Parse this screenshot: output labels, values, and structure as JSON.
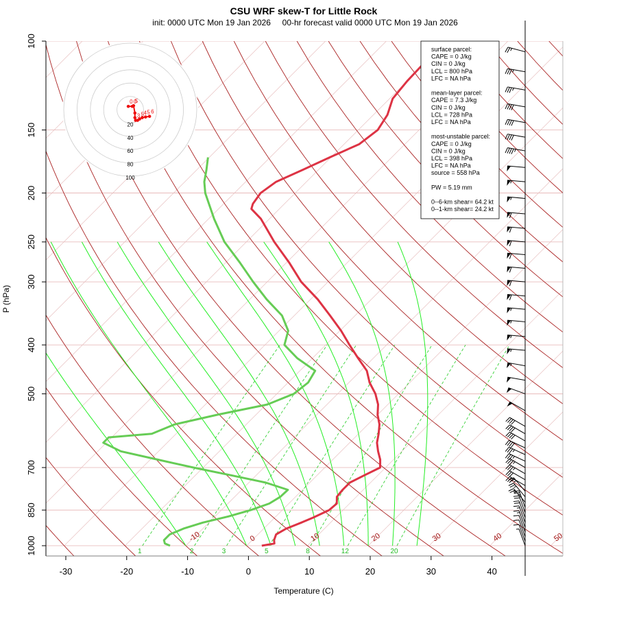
{
  "chart_data": {
    "type": "line",
    "title": "CSU WRF skew-T for Little Rock",
    "subtitle": "init: 0000 UTC Mon 19 Jan 2026     00-hr forecast valid 0000 UTC Mon 19 Jan 2026",
    "xlabel": "Temperature (C)",
    "ylabel": "P (hPa)",
    "x_ticks": [
      "-30",
      "-20",
      "-10",
      "0",
      "10",
      "20",
      "30",
      "40"
    ],
    "x_tick_values": [
      -30,
      -20,
      -10,
      0,
      10,
      20,
      30,
      40
    ],
    "y_ticks": [
      "100",
      "150",
      "200",
      "250",
      "300",
      "400",
      "500",
      "700",
      "850",
      "1000"
    ],
    "y_tick_values": [
      100,
      150,
      200,
      250,
      300,
      400,
      500,
      700,
      850,
      1000
    ],
    "pressure_range": [
      1000,
      100
    ],
    "skew_temperature_range": [
      -33,
      52
    ],
    "isotherm_labels": [
      "-10",
      "0",
      "10",
      "20",
      "30",
      "40",
      "50"
    ],
    "isotherm_label_values": [
      -10,
      0,
      10,
      20,
      30,
      40,
      50
    ],
    "mixing_ratio_labels": [
      "1",
      "2",
      "3",
      "5",
      "8",
      "12",
      "20"
    ],
    "mixing_ratio_values": [
      1,
      2,
      3,
      5,
      8,
      12,
      20
    ],
    "series": [
      {
        "name": "temperature",
        "color": "#dd3344",
        "pressure": [
          1000,
          990,
          975,
          950,
          925,
          900,
          880,
          850,
          825,
          800,
          775,
          750,
          725,
          700,
          675,
          650,
          625,
          600,
          575,
          550,
          525,
          500,
          475,
          450,
          425,
          400,
          375,
          350,
          325,
          300,
          275,
          250,
          225,
          215,
          210,
          200,
          190,
          180,
          170,
          160,
          150,
          140,
          130,
          120,
          110,
          100
        ],
        "temperature": [
          2.5,
          4.2,
          3.6,
          3.0,
          3.7,
          5.2,
          6.3,
          7.7,
          7.9,
          6.8,
          6.6,
          6.6,
          7.8,
          9.1,
          7.8,
          6.1,
          4.5,
          3.3,
          1.9,
          0.0,
          -1.6,
          -3.8,
          -6.6,
          -9.0,
          -12.5,
          -16.1,
          -19.8,
          -24.1,
          -28.8,
          -34.4,
          -39.5,
          -45.4,
          -51.4,
          -54.6,
          -55.2,
          -55.7,
          -55.0,
          -52.6,
          -50.2,
          -47.5,
          -46.8,
          -47.7,
          -49.5,
          -50.0,
          -50.2,
          -50.6
        ]
      },
      {
        "name": "dewpoint",
        "color": "#66cc55",
        "pressure": [
          1000,
          990,
          975,
          950,
          925,
          900,
          875,
          850,
          825,
          800,
          775,
          750,
          725,
          700,
          675,
          650,
          625,
          610,
          600,
          575,
          550,
          525,
          500,
          475,
          450,
          425,
          400,
          375,
          350,
          325,
          300,
          275,
          250,
          225,
          200,
          190,
          180,
          170
        ],
        "dewpoint": [
          -12.6,
          -13.8,
          -14.5,
          -14.5,
          -13.2,
          -11.0,
          -7.8,
          -5.2,
          -3.2,
          -2.5,
          -2.4,
          -7.2,
          -14.2,
          -21.6,
          -28.8,
          -36.2,
          -40.5,
          -40.5,
          -34.0,
          -31.8,
          -26.3,
          -19.8,
          -17.2,
          -16.7,
          -17.5,
          -22.5,
          -26.8,
          -28.5,
          -32.0,
          -37.2,
          -42.3,
          -47.6,
          -53.6,
          -59.1,
          -64.8,
          -66.8,
          -68.4,
          -70.2
        ]
      }
    ],
    "wind_barbs": {
      "pressure": [
        105,
        115,
        125,
        135,
        145,
        155,
        165,
        178,
        190,
        205,
        220,
        235,
        250,
        265,
        282,
        300,
        320,
        340,
        360,
        385,
        410,
        440,
        470,
        500,
        540,
        580,
        600,
        620,
        640,
        660,
        680,
        700,
        720,
        740,
        760,
        780,
        800,
        820,
        840,
        860,
        880,
        900,
        920,
        940,
        960,
        980,
        1000
      ],
      "speed_kt": [
        25,
        35,
        35,
        40,
        40,
        40,
        45,
        50,
        55,
        55,
        60,
        60,
        60,
        60,
        60,
        60,
        60,
        55,
        55,
        55,
        55,
        55,
        50,
        50,
        50,
        40,
        40,
        40,
        40,
        35,
        35,
        35,
        35,
        30,
        30,
        25,
        25,
        25,
        25,
        20,
        20,
        15,
        15,
        10,
        10,
        10,
        5
      ],
      "direction_deg": [
        285,
        280,
        280,
        280,
        280,
        280,
        280,
        275,
        275,
        275,
        275,
        275,
        275,
        275,
        275,
        275,
        275,
        275,
        275,
        275,
        275,
        280,
        280,
        290,
        300,
        300,
        300,
        300,
        295,
        295,
        295,
        300,
        300,
        300,
        300,
        320,
        320,
        320,
        340,
        340,
        340,
        340,
        340,
        340,
        340,
        340,
        340
      ]
    },
    "hodograph": {
      "ring_labels": [
        "20",
        "40",
        "60",
        "80",
        "100"
      ],
      "ring_values": [
        20,
        40,
        60,
        80,
        100
      ],
      "points": [
        {
          "u": -3,
          "v": 5,
          "label": "0"
        },
        {
          "u": 3,
          "v": 5,
          "label": "0"
        },
        {
          "u": 5,
          "v": 6,
          "label": "5"
        },
        {
          "u": 7,
          "v": -5,
          "label": ""
        },
        {
          "u": 7,
          "v": -12,
          "label": ""
        },
        {
          "u": 8,
          "v": -16,
          "label": "3"
        },
        {
          "u": 11,
          "v": -16,
          "label": ""
        },
        {
          "u": 14,
          "v": -14,
          "label": "5"
        },
        {
          "u": 18,
          "v": -12,
          "label": "4"
        },
        {
          "u": 23,
          "v": -11,
          "label": "5"
        },
        {
          "u": 29,
          "v": -10,
          "label": "6"
        }
      ]
    }
  },
  "parcel_box": {
    "lines": [
      "surface parcel:",
      "CAPE = 0 J/kg",
      "CIN = 0 J/kg",
      "LCL = 800 hPa",
      "LFC = NA hPa",
      "",
      "mean-layer parcel:",
      "CAPE = 7.3 J/kg",
      "CIN = 0 J/kg",
      "LCL = 728 hPa",
      "LFC = NA hPa",
      "",
      "most-unstable parcel:",
      "CAPE = 0 J/kg",
      "CIN = 0 J/kg",
      "LCL = 398 hPa",
      "LFC = NA hPa",
      "source = 558 hPa",
      "",
      "PW =  5.19 mm",
      "",
      "0--6-km shear= 64.2 kt",
      "0--1-km shear= 24.2 kt"
    ]
  },
  "colors": {
    "temperature": "#dd3344",
    "dewpoint": "#66cc55",
    "isotherm": "#e8c0c0",
    "dry_adiabat": "#aa2222",
    "moist_adiabat": "#22ee22",
    "mixing_ratio": "#22cc22",
    "isobar": "#e4b0b0",
    "hodograph": "#ee1111"
  }
}
